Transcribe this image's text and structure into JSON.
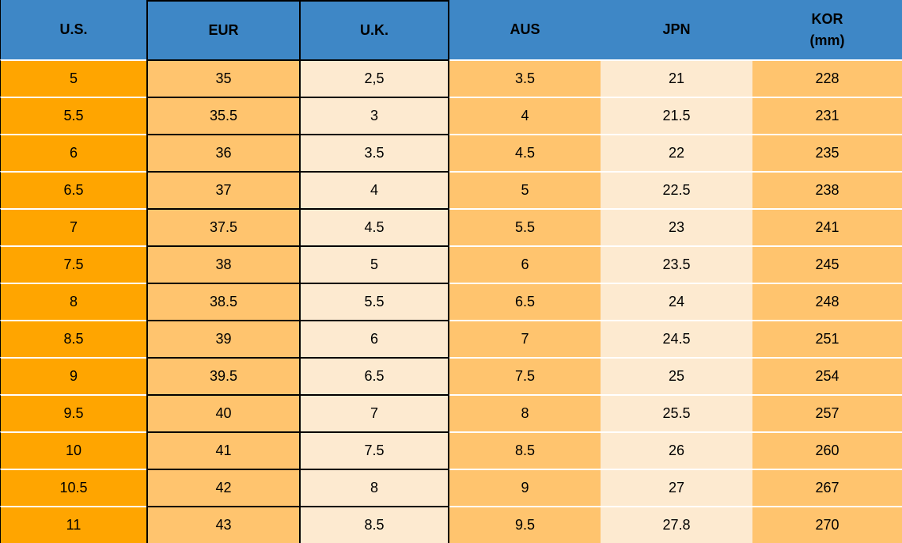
{
  "chart_data": {
    "type": "table",
    "columns": [
      "U.S.",
      "EUR",
      "U.K.",
      "AUS",
      "JPN",
      "KOR (mm)"
    ],
    "rows": [
      [
        "5",
        "35",
        "2,5",
        "3.5",
        "21",
        "228"
      ],
      [
        "5.5",
        "35.5",
        "3",
        "4",
        "21.5",
        "231"
      ],
      [
        "6",
        "36",
        "3.5",
        "4.5",
        "22",
        "235"
      ],
      [
        "6.5",
        "37",
        "4",
        "5",
        "22.5",
        "238"
      ],
      [
        "7",
        "37.5",
        "4.5",
        "5.5",
        "23",
        "241"
      ],
      [
        "7.5",
        "38",
        "5",
        "6",
        "23.5",
        "245"
      ],
      [
        "8",
        "38.5",
        "5.5",
        "6.5",
        "24",
        "248"
      ],
      [
        "8.5",
        "39",
        "6",
        "7",
        "24.5",
        "251"
      ],
      [
        "9",
        "39.5",
        "6.5",
        "7.5",
        "25",
        "254"
      ],
      [
        "9.5",
        "40",
        "7",
        "8",
        "25.5",
        "257"
      ],
      [
        "10",
        "41",
        "7.5",
        "8.5",
        "26",
        "260"
      ],
      [
        "10.5",
        "42",
        "8",
        "9",
        "27",
        "267"
      ],
      [
        "11",
        "43",
        "8.5",
        "9.5",
        "27.8",
        "270"
      ]
    ]
  },
  "table": {
    "headers": [
      {
        "id": "us",
        "lines": [
          "U.S."
        ]
      },
      {
        "id": "eur",
        "lines": [
          "EUR"
        ]
      },
      {
        "id": "uk",
        "lines": [
          "U.K."
        ]
      },
      {
        "id": "aus",
        "lines": [
          "AUS"
        ]
      },
      {
        "id": "jpn",
        "lines": [
          "JPN"
        ]
      },
      {
        "id": "kor",
        "lines": [
          "KOR",
          "(mm)"
        ]
      }
    ]
  },
  "colors": {
    "header_bg": "#3E87C6",
    "col_us_bg": "#FFA500",
    "col_mid_bg": "#FFC46E",
    "col_cream_bg": "#FDEAD0",
    "border_black": "#000000",
    "separator_white": "#FFFFFF",
    "text": "#000000"
  }
}
